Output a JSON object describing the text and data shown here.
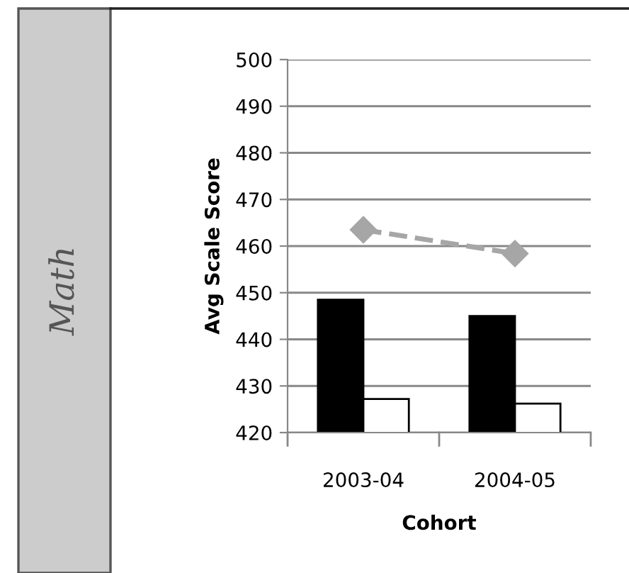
{
  "chart_data": {
    "type": "bar",
    "xlabel": "Cohort",
    "ylabel": "Avg Scale Score",
    "annotations": [
      "Math"
    ],
    "categories": [
      "2003-04",
      "2004-05"
    ],
    "series": [
      {
        "color": "#000000",
        "values": [
          448.5,
          445
        ]
      },
      {
        "color": "#ffffff",
        "values": [
          427.2,
          426.2
        ]
      },
      {
        "type": "line",
        "color": "#a6a6a6",
        "values": [
          463.5,
          458.4
        ],
        "marker": "diamond",
        "line_style": "dashed"
      }
    ],
    "ylim": [
      420,
      500
    ],
    "yticks": [
      420,
      430,
      440,
      450,
      460,
      470,
      480,
      490,
      500
    ],
    "grid": "y",
    "legend": false
  }
}
